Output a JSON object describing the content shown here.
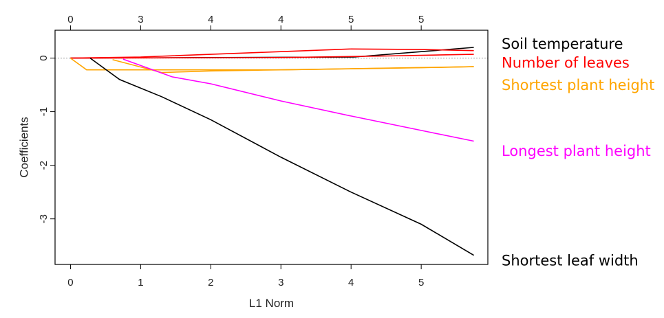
{
  "chart_data": {
    "type": "line",
    "title": "",
    "xlabel": "L1 Norm",
    "ylabel": "Coefficients",
    "xlim": [
      -0.22,
      5.95
    ],
    "ylim": [
      -3.85,
      0.52
    ],
    "x_ticks": [
      0,
      1,
      2,
      3,
      4,
      5
    ],
    "x_tick_labels": [
      "0",
      "1",
      "2",
      "3",
      "4",
      "5"
    ],
    "y_ticks": [
      0,
      -1,
      -2,
      -3
    ],
    "y_tick_labels": [
      "0",
      "-1",
      "-2",
      "-3"
    ],
    "top_axis": {
      "ticks": [
        0,
        1,
        2,
        3,
        4,
        5
      ],
      "labels": [
        "0",
        "3",
        "4",
        "4",
        "5",
        "5"
      ]
    },
    "zero_line": true,
    "grid": false,
    "legend": "right-edge labels",
    "series": [
      {
        "name": "Soil temperature",
        "color": "#000000",
        "points": [
          [
            0,
            0
          ],
          [
            4.05,
            0.02
          ],
          [
            5.0,
            0.12
          ],
          [
            5.75,
            0.2
          ]
        ]
      },
      {
        "name": "Number of leaves",
        "color": "#ff0000",
        "points": [
          [
            0,
            0
          ],
          [
            1.0,
            0.02
          ],
          [
            2.0,
            0.07
          ],
          [
            3.0,
            0.12
          ],
          [
            4.0,
            0.17
          ],
          [
            5.0,
            0.16
          ],
          [
            5.75,
            0.14
          ]
        ]
      },
      {
        "name": "Number of leaves",
        "color": "#ff0000",
        "points": [
          [
            0,
            0
          ],
          [
            3.0,
            0.01
          ],
          [
            4.5,
            0.04
          ],
          [
            5.75,
            0.07
          ]
        ]
      },
      {
        "name": "Shortest plant height",
        "color": "#ffa500",
        "points": [
          [
            0,
            0
          ],
          [
            0.23,
            -0.22
          ],
          [
            1.0,
            -0.22
          ],
          [
            3.0,
            -0.22
          ],
          [
            5.75,
            -0.16
          ]
        ]
      },
      {
        "name": "Shortest plant height",
        "color": "#ffa500",
        "points": [
          [
            0.6,
            -0.03
          ],
          [
            1.3,
            -0.27
          ],
          [
            2.0,
            -0.24
          ],
          [
            3.0,
            -0.22
          ],
          [
            4.0,
            -0.2
          ],
          [
            5.0,
            -0.18
          ],
          [
            5.75,
            -0.16
          ]
        ]
      },
      {
        "name": "Longest plant height",
        "color": "#ff00ff",
        "points": [
          [
            0.75,
            -0.02
          ],
          [
            1.45,
            -0.35
          ],
          [
            2.0,
            -0.48
          ],
          [
            3.0,
            -0.8
          ],
          [
            4.0,
            -1.08
          ],
          [
            5.0,
            -1.35
          ],
          [
            5.75,
            -1.55
          ]
        ]
      },
      {
        "name": "Shortest leaf width",
        "color": "#000000",
        "points": [
          [
            0.28,
            0
          ],
          [
            0.7,
            -0.4
          ],
          [
            1.3,
            -0.72
          ],
          [
            2.0,
            -1.15
          ],
          [
            3.0,
            -1.85
          ],
          [
            4.0,
            -2.5
          ],
          [
            5.0,
            -3.1
          ],
          [
            5.75,
            -3.68
          ]
        ]
      }
    ],
    "labels": [
      {
        "text": "Soil temperature",
        "color": "#000000",
        "y": 0.25
      },
      {
        "text": "Number of leaves",
        "color": "#ff0000",
        "y": -0.1
      },
      {
        "text": "Shortest plant height",
        "color": "#ffa500",
        "y": -0.52
      },
      {
        "text": "Longest plant height",
        "color": "#ff00ff",
        "y": -1.75
      },
      {
        "text": "Shortest leaf width",
        "color": "#000000",
        "y": -3.79
      }
    ]
  }
}
